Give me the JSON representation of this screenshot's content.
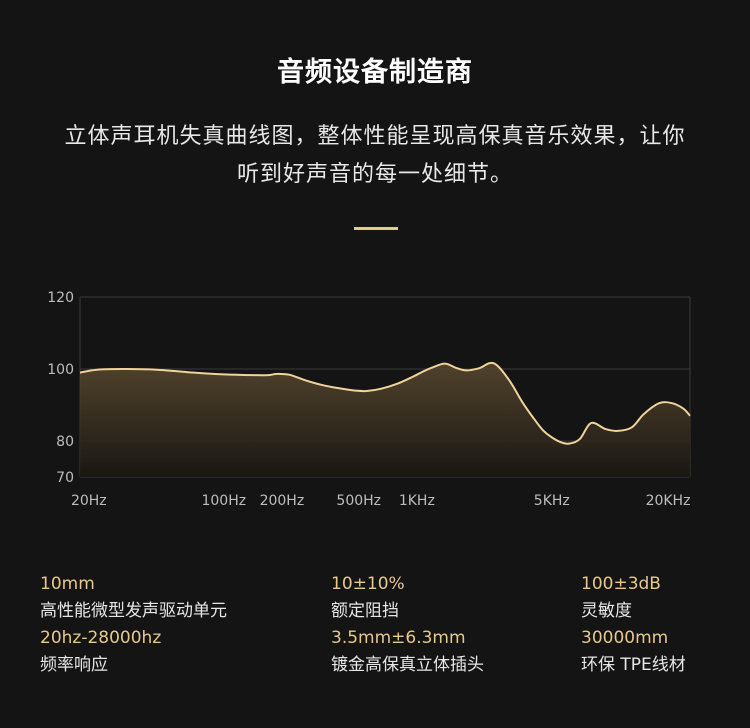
{
  "header": {
    "title": "音频设备制造商",
    "description_line1": "立体声耳机失真曲线图，整体性能呈现高保真音乐效果，让你",
    "description_line2": "听到好声音的每一处细节。"
  },
  "colors": {
    "background": "#141414",
    "accent": "#e8c98c",
    "curve": "#f0d39a",
    "grid": "#3a3a3a"
  },
  "chart_data": {
    "type": "area",
    "title": "",
    "xlabel": "",
    "ylabel": "",
    "x_scale": "log",
    "xlim": [
      18,
      26000
    ],
    "ylim": [
      70,
      120
    ],
    "yticks": [
      70,
      80,
      100,
      120
    ],
    "xticks": [
      {
        "value": 20,
        "label": "20Hz"
      },
      {
        "value": 100,
        "label": "100Hz"
      },
      {
        "value": 200,
        "label": "200Hz"
      },
      {
        "value": 500,
        "label": "500Hz"
      },
      {
        "value": 1000,
        "label": "1KHz"
      },
      {
        "value": 5000,
        "label": "5KHz"
      },
      {
        "value": 20000,
        "label": "20KHz"
      }
    ],
    "grid": true,
    "series": [
      {
        "x": [
          18,
          22,
          30,
          45,
          70,
          100,
          140,
          170,
          185,
          200,
          220,
          260,
          320,
          400,
          480,
          550,
          650,
          800,
          950,
          1050,
          1200,
          1400,
          1600,
          1800,
          2100,
          2500,
          3000,
          3500,
          4000,
          4500,
          5000,
          5600,
          6200,
          7000,
          8000,
          9500,
          11000,
          13000,
          15000,
          18000,
          21000,
          24000,
          26000
        ],
        "y": [
          99,
          99.8,
          100,
          99.8,
          99,
          98.5,
          98.3,
          98.3,
          98.6,
          98.6,
          98.4,
          97,
          95.6,
          94.6,
          94,
          93.9,
          94.5,
          96,
          97.8,
          99,
          100.4,
          101.5,
          100.3,
          99.6,
          100.2,
          101.6,
          97,
          91,
          86.5,
          83,
          81,
          79.6,
          79.3,
          80.6,
          85,
          83.3,
          82.8,
          83.8,
          87.5,
          90.5,
          90.5,
          89,
          87
        ]
      }
    ]
  },
  "specs": [
    {
      "value": "10mm",
      "label": "高性能微型发声驱动单元"
    },
    {
      "value": "10±10%",
      "label": "额定阻挡"
    },
    {
      "value": "100±3dB",
      "label": "灵敏度"
    },
    {
      "value": "20hz-28000hz",
      "label": "频率响应"
    },
    {
      "value": "3.5mm±6.3mm",
      "label": "镀金高保真立体插头"
    },
    {
      "value": "30000mm",
      "label": "环保 TPE线材"
    }
  ]
}
